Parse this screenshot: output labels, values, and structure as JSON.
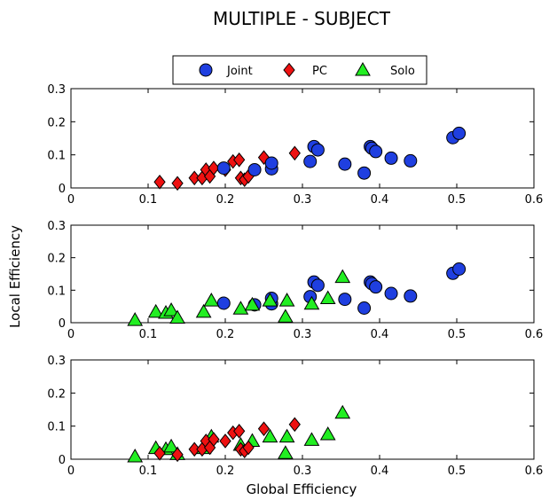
{
  "title": "MULTIPLE - SUBJECT",
  "xlabel": "Global Efficiency",
  "ylabel": "Local Efficiency",
  "legend": [
    {
      "name": "Joint",
      "marker": "circle",
      "color": "#1f3fe0"
    },
    {
      "name": "PC",
      "marker": "diamond",
      "color": "#ee1111"
    },
    {
      "name": "Solo",
      "marker": "triangle",
      "color": "#22ee22"
    }
  ],
  "chart_data": [
    {
      "type": "scatter",
      "xlim": [
        0,
        0.6
      ],
      "ylim": [
        0,
        0.3
      ],
      "xticks": [
        "0",
        "0.1",
        "0.2",
        "0.3",
        "0.4",
        "0.5",
        "0.6"
      ],
      "yticks": [
        "0",
        "0.1",
        "0.2",
        "0.3"
      ],
      "series": [
        {
          "name": "PC",
          "points": [
            [
              0.115,
              0.018
            ],
            [
              0.138,
              0.014
            ],
            [
              0.16,
              0.03
            ],
            [
              0.17,
              0.03
            ],
            [
              0.175,
              0.055
            ],
            [
              0.18,
              0.035
            ],
            [
              0.185,
              0.06
            ],
            [
              0.2,
              0.055
            ],
            [
              0.21,
              0.08
            ],
            [
              0.218,
              0.085
            ],
            [
              0.22,
              0.03
            ],
            [
              0.225,
              0.025
            ],
            [
              0.23,
              0.035
            ],
            [
              0.25,
              0.092
            ],
            [
              0.29,
              0.105
            ]
          ]
        },
        {
          "name": "Joint",
          "points": [
            [
              0.198,
              0.06
            ],
            [
              0.238,
              0.055
            ],
            [
              0.26,
              0.058
            ],
            [
              0.26,
              0.075
            ],
            [
              0.31,
              0.08
            ],
            [
              0.315,
              0.125
            ],
            [
              0.32,
              0.115
            ],
            [
              0.355,
              0.072
            ],
            [
              0.38,
              0.045
            ],
            [
              0.388,
              0.125
            ],
            [
              0.39,
              0.12
            ],
            [
              0.395,
              0.11
            ],
            [
              0.415,
              0.09
            ],
            [
              0.44,
              0.082
            ],
            [
              0.495,
              0.152
            ],
            [
              0.503,
              0.165
            ]
          ]
        }
      ]
    },
    {
      "type": "scatter",
      "xlim": [
        0,
        0.6
      ],
      "ylim": [
        0,
        0.3
      ],
      "xticks": [
        "0",
        "0.1",
        "0.2",
        "0.3",
        "0.4",
        "0.5",
        "0.6"
      ],
      "yticks": [
        "0",
        "0.1",
        "0.2",
        "0.3"
      ],
      "series": [
        {
          "name": "Joint",
          "points": [
            [
              0.198,
              0.06
            ],
            [
              0.238,
              0.055
            ],
            [
              0.26,
              0.058
            ],
            [
              0.26,
              0.075
            ],
            [
              0.31,
              0.08
            ],
            [
              0.315,
              0.125
            ],
            [
              0.32,
              0.115
            ],
            [
              0.355,
              0.072
            ],
            [
              0.38,
              0.045
            ],
            [
              0.388,
              0.125
            ],
            [
              0.39,
              0.12
            ],
            [
              0.395,
              0.11
            ],
            [
              0.415,
              0.09
            ],
            [
              0.44,
              0.082
            ],
            [
              0.495,
              0.152
            ],
            [
              0.503,
              0.165
            ]
          ]
        },
        {
          "name": "Solo",
          "points": [
            [
              0.083,
              0.008
            ],
            [
              0.11,
              0.033
            ],
            [
              0.123,
              0.03
            ],
            [
              0.13,
              0.038
            ],
            [
              0.138,
              0.015
            ],
            [
              0.172,
              0.033
            ],
            [
              0.182,
              0.068
            ],
            [
              0.22,
              0.043
            ],
            [
              0.235,
              0.055
            ],
            [
              0.258,
              0.068
            ],
            [
              0.278,
              0.018
            ],
            [
              0.28,
              0.068
            ],
            [
              0.312,
              0.058
            ],
            [
              0.333,
              0.075
            ],
            [
              0.352,
              0.14
            ]
          ]
        }
      ]
    },
    {
      "type": "scatter",
      "xlim": [
        0,
        0.6
      ],
      "ylim": [
        0,
        0.3
      ],
      "xticks": [
        "0",
        "0.1",
        "0.2",
        "0.3",
        "0.4",
        "0.5",
        "0.6"
      ],
      "yticks": [
        "0",
        "0.1",
        "0.2",
        "0.3"
      ],
      "series": [
        {
          "name": "Solo",
          "points": [
            [
              0.083,
              0.008
            ],
            [
              0.11,
              0.033
            ],
            [
              0.123,
              0.03
            ],
            [
              0.13,
              0.038
            ],
            [
              0.138,
              0.015
            ],
            [
              0.172,
              0.033
            ],
            [
              0.182,
              0.068
            ],
            [
              0.22,
              0.043
            ],
            [
              0.235,
              0.055
            ],
            [
              0.258,
              0.068
            ],
            [
              0.278,
              0.018
            ],
            [
              0.28,
              0.068
            ],
            [
              0.312,
              0.058
            ],
            [
              0.333,
              0.075
            ],
            [
              0.352,
              0.14
            ]
          ]
        },
        {
          "name": "PC",
          "points": [
            [
              0.115,
              0.018
            ],
            [
              0.138,
              0.014
            ],
            [
              0.16,
              0.03
            ],
            [
              0.17,
              0.03
            ],
            [
              0.175,
              0.055
            ],
            [
              0.18,
              0.035
            ],
            [
              0.185,
              0.06
            ],
            [
              0.2,
              0.055
            ],
            [
              0.21,
              0.08
            ],
            [
              0.218,
              0.085
            ],
            [
              0.22,
              0.03
            ],
            [
              0.225,
              0.025
            ],
            [
              0.23,
              0.035
            ],
            [
              0.25,
              0.092
            ],
            [
              0.29,
              0.105
            ]
          ]
        }
      ]
    }
  ]
}
